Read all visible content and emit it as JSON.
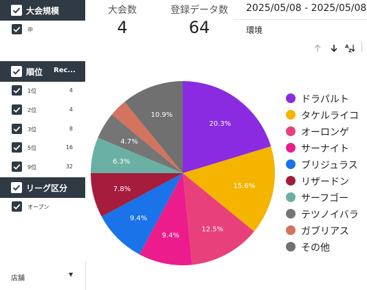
{
  "filters": {
    "tournament_size": {
      "title": "大会規模",
      "items": [
        {
          "label": "中",
          "checked": true
        }
      ]
    },
    "rank": {
      "title": "順位",
      "count_header": "Rec...",
      "items": [
        {
          "label": "1位",
          "count": "4",
          "checked": true
        },
        {
          "label": "2位",
          "count": "4",
          "checked": true
        },
        {
          "label": "3位",
          "count": "8",
          "checked": true
        },
        {
          "label": "5位",
          "count": "16",
          "checked": true
        },
        {
          "label": "9位",
          "count": "32",
          "checked": true
        }
      ]
    },
    "league": {
      "title": "リーグ区分",
      "items": [
        {
          "label": "オープン",
          "checked": true
        }
      ]
    },
    "store": {
      "label": "店舗"
    }
  },
  "stats": {
    "tournaments": {
      "label": "大会数",
      "value": "4"
    },
    "records": {
      "label": "登録データ数",
      "value": "64"
    }
  },
  "date_range": "2025/05/08 - 2025/05/08",
  "environment_label": "環境",
  "toolbar": {
    "sort_asc_icon": "arrow-up-icon",
    "sort_desc_icon": "arrow-down-icon",
    "sort_az_icon": "sort-az-icon"
  },
  "chart_data": {
    "type": "pie",
    "slices": [
      {
        "name": "ドラパルト",
        "value": 20.3,
        "label": "20.3%",
        "color": "#8a2be2"
      },
      {
        "name": "タケルライコ",
        "value": 15.6,
        "label": "15.6%",
        "color": "#f4b400"
      },
      {
        "name": "オーロンゲ",
        "value": 12.5,
        "label": "12.5%",
        "color": "#e8407a"
      },
      {
        "name": "サーナイト",
        "value": 9.4,
        "label": "9.4%",
        "color": "#ec1c8c"
      },
      {
        "name": "ブリジュラス",
        "value": 9.4,
        "label": "9.4%",
        "color": "#1a73e8"
      },
      {
        "name": "リザードン",
        "value": 7.8,
        "label": "7.8%",
        "color": "#a51c3c"
      },
      {
        "name": "サーフゴー",
        "value": 6.3,
        "label": "6.3%",
        "color": "#6ab0a4"
      },
      {
        "name": "テツノイバラ",
        "value": 4.7,
        "label": "4.7%",
        "color": "#757575"
      },
      {
        "name": "ガブリアス",
        "value": 3.1,
        "label": "",
        "color": "#d4735e"
      },
      {
        "name": "その他",
        "value": 10.9,
        "label": "10.9%",
        "color": "#707070"
      }
    ],
    "legend_position": "right"
  }
}
